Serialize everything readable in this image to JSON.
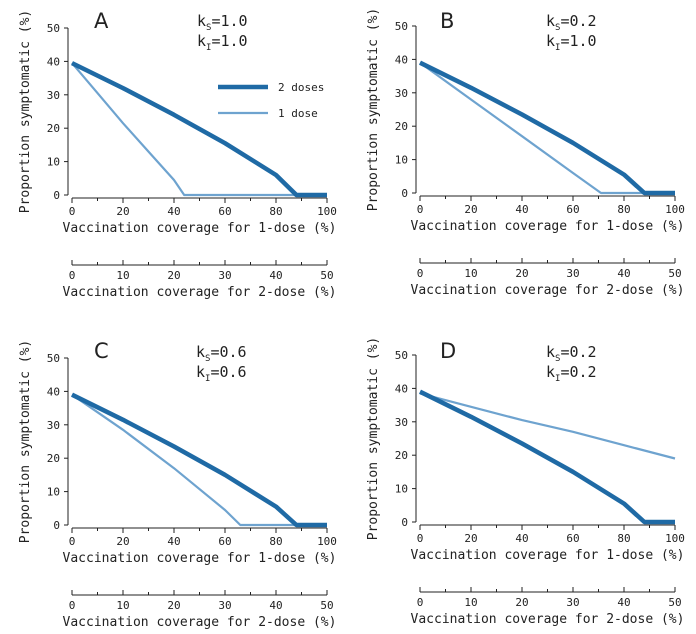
{
  "figure": {
    "colors": {
      "two_dose": "#1f6aa5",
      "one_dose": "#6ea3cf",
      "axis": "#222222"
    },
    "xlabel_1dose": "Vaccination coverage for 1-dose (%)",
    "xlabel_2dose": "Vaccination coverage for 2-dose (%)",
    "ylabel": "Proportion symptomatic (%)",
    "legend": {
      "two_doses": "2 doses",
      "one_dose": "1 dose",
      "placement": "inside panel A, upper-middle"
    },
    "tick_labels_1dose": [
      "0",
      "20",
      "40",
      "60",
      "80",
      "100"
    ],
    "tick_labels_2dose": [
      "0",
      "10",
      "20",
      "30",
      "40",
      "50"
    ],
    "tick_labels_y": [
      "0",
      "10",
      "20",
      "30",
      "40",
      "50"
    ]
  },
  "chart_data": [
    {
      "type": "line",
      "panel": "A",
      "ks": "1.0",
      "ki": "1.0",
      "xlim": [
        0,
        100
      ],
      "ylim": [
        0,
        50
      ],
      "series": [
        {
          "name": "2 doses",
          "x": [
            0,
            20,
            40,
            60,
            80,
            88,
            100
          ],
          "y": [
            39.5,
            32,
            24,
            15.5,
            6,
            0,
            0
          ]
        },
        {
          "name": "1 dose",
          "x": [
            0,
            10,
            20,
            30,
            40,
            44,
            100
          ],
          "y": [
            39.5,
            30.5,
            21.5,
            13,
            4.5,
            0,
            0
          ]
        }
      ]
    },
    {
      "type": "line",
      "panel": "B",
      "ks": "0.2",
      "ki": "1.0",
      "xlim": [
        0,
        100
      ],
      "ylim": [
        0,
        50
      ],
      "series": [
        {
          "name": "2 doses",
          "x": [
            0,
            20,
            40,
            60,
            80,
            88,
            100
          ],
          "y": [
            39,
            31.5,
            23.5,
            15,
            5.5,
            0,
            0
          ]
        },
        {
          "name": "1 dose",
          "x": [
            0,
            20,
            40,
            60,
            71,
            100
          ],
          "y": [
            39,
            28,
            17,
            6,
            0,
            0
          ]
        }
      ]
    },
    {
      "type": "line",
      "panel": "C",
      "ks": "0.6",
      "ki": "0.6",
      "xlim": [
        0,
        100
      ],
      "ylim": [
        0,
        50
      ],
      "series": [
        {
          "name": "2 doses",
          "x": [
            0,
            20,
            40,
            60,
            80,
            88,
            100
          ],
          "y": [
            39,
            31.5,
            23.5,
            15,
            5.5,
            0,
            0
          ]
        },
        {
          "name": "1 dose",
          "x": [
            0,
            20,
            40,
            60,
            66,
            100
          ],
          "y": [
            39,
            28.5,
            17,
            4.5,
            0,
            0
          ]
        }
      ]
    },
    {
      "type": "line",
      "panel": "D",
      "ks": "0.2",
      "ki": "0.2",
      "xlim": [
        0,
        100
      ],
      "ylim": [
        0,
        50
      ],
      "series": [
        {
          "name": "2 doses",
          "x": [
            0,
            20,
            40,
            60,
            80,
            88,
            100
          ],
          "y": [
            39,
            31.5,
            23.5,
            15,
            5.5,
            0,
            0
          ]
        },
        {
          "name": "1 dose",
          "x": [
            0,
            20,
            40,
            60,
            80,
            100
          ],
          "y": [
            38.5,
            34.5,
            30.5,
            27,
            23,
            19
          ]
        }
      ]
    }
  ]
}
